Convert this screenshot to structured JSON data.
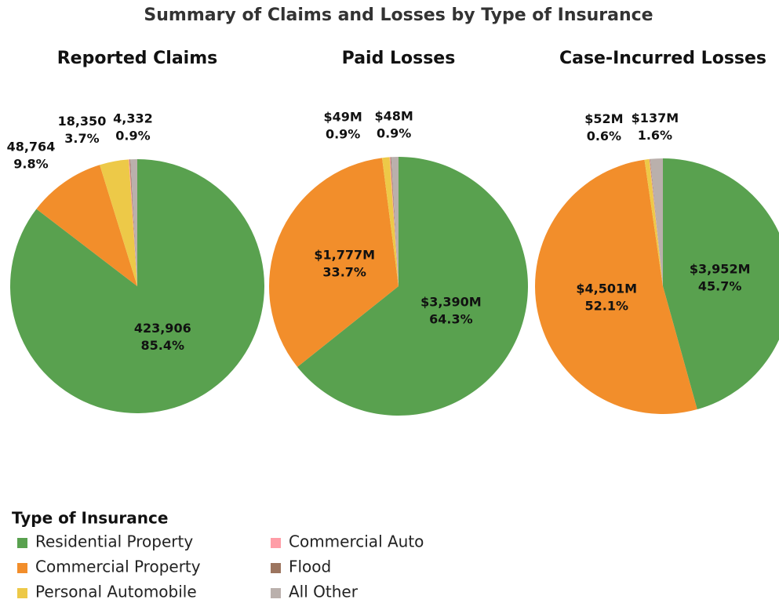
{
  "title": "Summary of Claims and Losses by Type of Insurance",
  "legend_title": "Type of Insurance",
  "chart_data": [
    {
      "type": "pie",
      "title": "Reported Claims",
      "categories": [
        "Residential Property",
        "Commercial Property",
        "Personal Automobile",
        "Commercial Auto",
        "Flood",
        "All Other"
      ],
      "colors": [
        "#59a14f",
        "#f28e2b",
        "#edc948",
        "#ff9da7",
        "#9c755f",
        "#bab0ac"
      ],
      "values": [
        423906,
        48764,
        18350,
        500,
        500,
        4332
      ],
      "value_labels": [
        "423,906",
        "48,764",
        "18,350",
        null,
        null,
        "4,332"
      ],
      "percent_labels": [
        "85.4%",
        "9.8%",
        "3.7%",
        null,
        null,
        "0.9%"
      ]
    },
    {
      "type": "pie",
      "title": "Paid Losses",
      "categories": [
        "Residential Property",
        "Commercial Property",
        "Personal Automobile",
        "Commercial Auto",
        "Flood",
        "All Other"
      ],
      "colors": [
        "#59a14f",
        "#f28e2b",
        "#edc948",
        "#ff9da7",
        "#9c755f",
        "#bab0ac"
      ],
      "values": [
        3390,
        1777,
        49,
        5,
        5,
        48
      ],
      "value_labels": [
        "$3,390M",
        "$1,777M",
        "$49M",
        null,
        null,
        "$48M"
      ],
      "percent_labels": [
        "64.3%",
        "33.7%",
        "0.9%",
        null,
        null,
        "0.9%"
      ]
    },
    {
      "type": "pie",
      "title": "Case-Incurred Losses",
      "categories": [
        "Residential Property",
        "Commercial Property",
        "Personal Automobile",
        "Commercial Auto",
        "Flood",
        "All Other"
      ],
      "colors": [
        "#59a14f",
        "#f28e2b",
        "#edc948",
        "#ff9da7",
        "#9c755f",
        "#bab0ac"
      ],
      "values": [
        3952,
        4501,
        52,
        5,
        5,
        137
      ],
      "value_labels": [
        "$3,952M",
        "$4,501M",
        "$52M",
        null,
        null,
        "$137M"
      ],
      "percent_labels": [
        "45.7%",
        "52.1%",
        "0.6%",
        null,
        null,
        "1.6%"
      ]
    }
  ]
}
